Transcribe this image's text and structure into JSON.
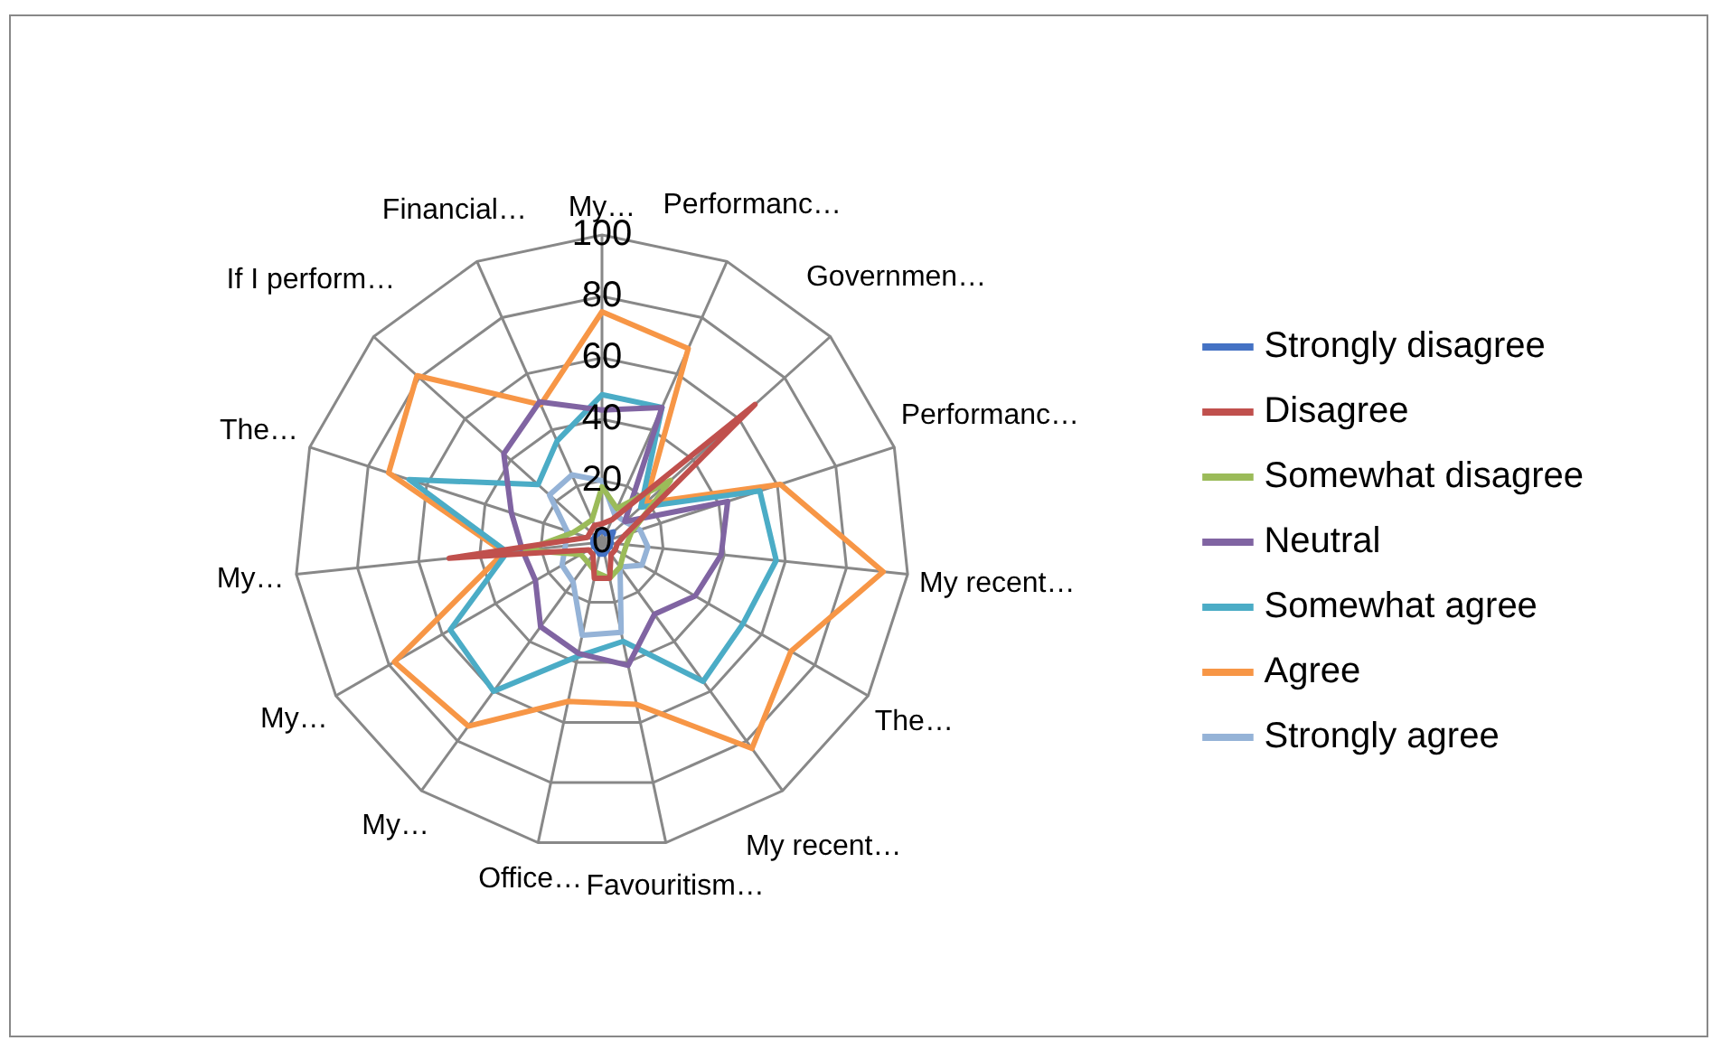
{
  "chart_data": {
    "type": "radar",
    "categories": [
      "My…",
      "Performanc…",
      "Governmen…",
      "Performanc…",
      "My recent…",
      "The…",
      "My recent…",
      "Favouritism…",
      "Office…",
      "My…",
      "My…",
      "My…",
      "The…",
      "If I perform…",
      "Financial…"
    ],
    "series": [
      {
        "name": "Strongly disagree",
        "color": "#4472c4",
        "values": [
          4,
          3,
          5,
          3,
          3,
          3,
          3,
          4,
          4,
          3,
          3,
          3,
          3,
          3,
          3
        ]
      },
      {
        "name": "Disagree",
        "color": "#c0504d",
        "values": [
          6,
          8,
          67,
          8,
          5,
          5,
          5,
          12,
          12,
          5,
          5,
          50,
          5,
          5,
          6
        ]
      },
      {
        "name": "Somewhat disagree",
        "color": "#9bbb59",
        "values": [
          18,
          12,
          30,
          10,
          8,
          8,
          10,
          12,
          10,
          8,
          8,
          25,
          10,
          8,
          8
        ]
      },
      {
        "name": "Neutral",
        "color": "#8064a2",
        "values": [
          43,
          48,
          10,
          43,
          39,
          35,
          29,
          41,
          37,
          34,
          25,
          26,
          31,
          43,
          50
        ]
      },
      {
        "name": "Somewhat agree",
        "color": "#4bacc6",
        "values": [
          48,
          48,
          17,
          54,
          57,
          53,
          56,
          33,
          38,
          60,
          57,
          31,
          66,
          28,
          36
        ]
      },
      {
        "name": "Agree",
        "color": "#f79646",
        "values": [
          75,
          69,
          19,
          61,
          92,
          71,
          83,
          54,
          53,
          74,
          78,
          32,
          73,
          81,
          49
        ]
      },
      {
        "name": "Strongly agree",
        "color": "#95b3d7",
        "values": [
          20,
          10,
          10,
          13,
          15,
          15,
          10,
          30,
          31,
          16,
          15,
          12,
          12,
          23,
          24
        ]
      }
    ],
    "ylim": [
      0,
      100
    ],
    "yticks": [
      0,
      20,
      40,
      60,
      80,
      100
    ],
    "grid": true,
    "legend": "right",
    "marker": "none"
  }
}
